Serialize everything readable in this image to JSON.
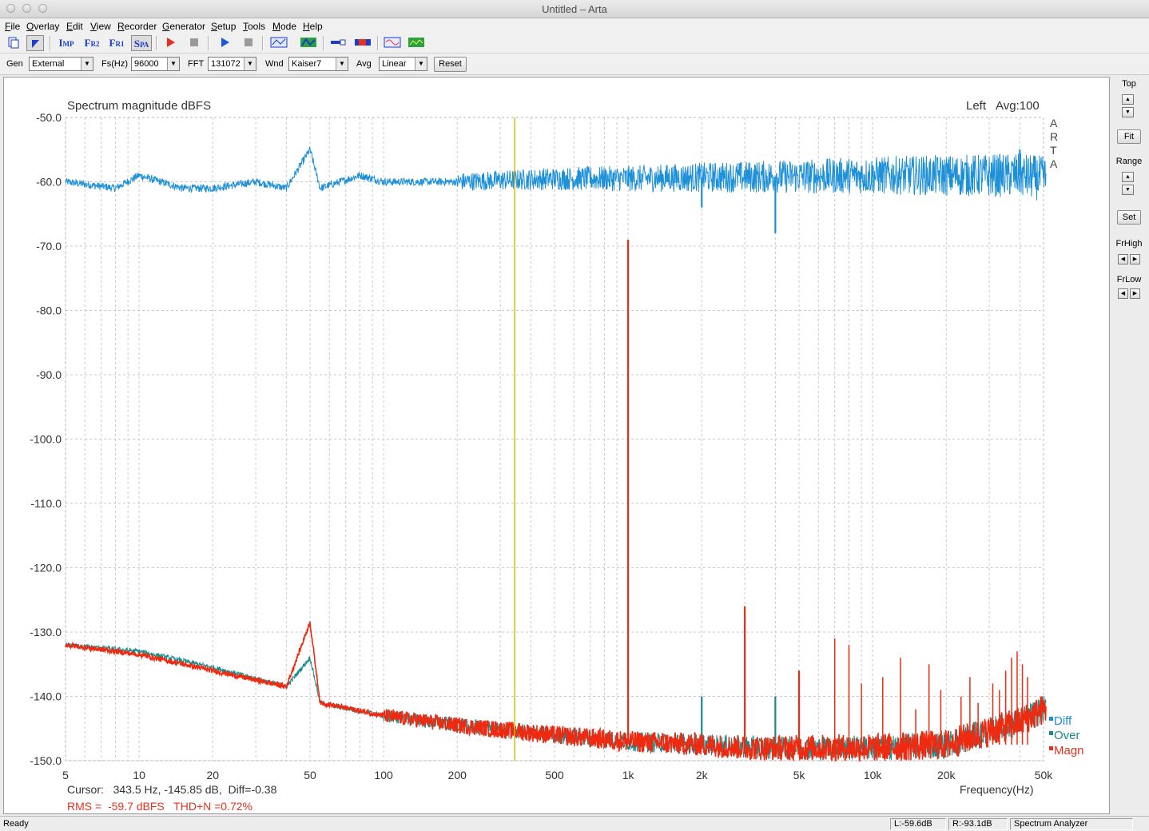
{
  "window": {
    "title": "Untitled – Arta"
  },
  "menu": [
    "File",
    "Overlay",
    "Edit",
    "View",
    "Recorder",
    "Generator",
    "Setup",
    "Tools",
    "Mode",
    "Help"
  ],
  "toolbar": {
    "buttons": [
      {
        "name": "copy-icon",
        "label": ""
      },
      {
        "name": "cursor-icon",
        "label": ""
      },
      {
        "name": "imp-mode-button",
        "label": "Imp"
      },
      {
        "name": "fr2-mode-button",
        "label": "Fr2"
      },
      {
        "name": "fr1-mode-button",
        "label": "Fr1"
      },
      {
        "name": "spa-mode-button",
        "label": "Spa"
      }
    ]
  },
  "params": {
    "gen_label": "Gen",
    "gen_value": "External",
    "fs_label": "Fs(Hz)",
    "fs_value": "96000",
    "fft_label": "FFT",
    "fft_value": "131072",
    "wnd_label": "Wnd",
    "wnd_value": "Kaiser7",
    "avg_label": "Avg",
    "avg_value": "Linear",
    "reset_label": "Reset"
  },
  "plot": {
    "title": "Spectrum magnitude dBFS",
    "channel": "Left",
    "avg": "Avg:100",
    "watermark": [
      "A",
      "R",
      "T",
      "A"
    ],
    "cursor_text": "Cursor:   343.5 Hz, -145.85 dB,  Diff=-0.38",
    "rms_text": "RMS =  -59.7 dBFS   THD+N =0.72%",
    "xlabel": "Frequency(Hz)",
    "legend": [
      "Diff",
      "Over",
      "Magn"
    ]
  },
  "side": {
    "top_label": "Top",
    "fit_label": "Fit",
    "range_label": "Range",
    "set_label": "Set",
    "frhigh_label": "FrHigh",
    "frlow_label": "FrLow"
  },
  "status": {
    "ready": "Ready",
    "left_level": "L:-59.6dB",
    "right_level": "R:-93.1dB",
    "mode": "Spectrum Analyzer"
  },
  "colors": {
    "diff": "#1e90d8",
    "over": "#1a8a8a",
    "magn": "#f02a10",
    "cursor": "#d4b800",
    "grid": "#c8c8c8",
    "accent": "#1a3cc8"
  },
  "chart_data": {
    "type": "line",
    "title": "Spectrum magnitude dBFS",
    "xlabel": "Frequency(Hz)",
    "ylabel": "",
    "xscale": "log",
    "xlim": [
      5,
      50000
    ],
    "ylim": [
      -150,
      -50
    ],
    "grid": true,
    "legend_position": "bottom-right",
    "x_ticks": [
      "5",
      "10",
      "20",
      "50",
      "100",
      "200",
      "500",
      "1k",
      "2k",
      "5k",
      "10k",
      "20k",
      "50k"
    ],
    "x_tick_values": [
      5,
      10,
      20,
      50,
      100,
      200,
      500,
      1000,
      2000,
      5000,
      10000,
      20000,
      50000
    ],
    "y_ticks": [
      "-50.0",
      "-60.0",
      "-70.0",
      "-80.0",
      "-90.0",
      "-100.0",
      "-110.0",
      "-120.0",
      "-130.0",
      "-140.0",
      "-150.0"
    ],
    "y_tick_values": [
      -50,
      -60,
      -70,
      -80,
      -90,
      -100,
      -110,
      -120,
      -130,
      -140,
      -150
    ],
    "cursor_hz": 343.5,
    "series": [
      {
        "name": "Diff",
        "points": [
          [
            5,
            -60
          ],
          [
            8,
            -61
          ],
          [
            10,
            -59
          ],
          [
            15,
            -61
          ],
          [
            20,
            -61
          ],
          [
            30,
            -60
          ],
          [
            40,
            -61
          ],
          [
            50,
            -55
          ],
          [
            55,
            -61
          ],
          [
            80,
            -59
          ],
          [
            100,
            -60
          ],
          [
            200,
            -60
          ],
          [
            500,
            -59.5
          ],
          [
            1000,
            -59.5
          ],
          [
            2000,
            -59.3
          ],
          [
            2000,
            -64
          ],
          [
            4000,
            -59.2
          ],
          [
            4000,
            -68
          ],
          [
            10000,
            -59
          ],
          [
            20000,
            -59
          ],
          [
            40000,
            -59
          ],
          [
            40000,
            -55
          ],
          [
            50000,
            -59.5
          ]
        ]
      },
      {
        "name": "Over",
        "points": [
          [
            5,
            -132
          ],
          [
            10,
            -133
          ],
          [
            20,
            -135.5
          ],
          [
            40,
            -138.5
          ],
          [
            50,
            -134
          ],
          [
            55,
            -141
          ],
          [
            100,
            -143
          ],
          [
            200,
            -144.5
          ],
          [
            500,
            -146
          ],
          [
            1000,
            -147
          ],
          [
            2000,
            -147.5
          ],
          [
            2000,
            -140
          ],
          [
            4000,
            -148
          ],
          [
            4000,
            -140
          ],
          [
            10000,
            -148
          ],
          [
            20000,
            -147.5
          ],
          [
            40000,
            -144
          ],
          [
            50000,
            -142
          ]
        ]
      },
      {
        "name": "Magn",
        "points": [
          [
            5,
            -132
          ],
          [
            10,
            -133.5
          ],
          [
            20,
            -136
          ],
          [
            40,
            -138.5
          ],
          [
            50,
            -128.5
          ],
          [
            55,
            -141
          ],
          [
            100,
            -143
          ],
          [
            200,
            -144.5
          ],
          [
            500,
            -146
          ],
          [
            1000,
            -147
          ],
          [
            1000,
            -69
          ],
          [
            2000,
            -147.5
          ],
          [
            3000,
            -148
          ],
          [
            3000,
            -126
          ],
          [
            5000,
            -148
          ],
          [
            5000,
            -136
          ],
          [
            10000,
            -148
          ],
          [
            20000,
            -147.5
          ],
          [
            40000,
            -144
          ],
          [
            50000,
            -142
          ]
        ]
      }
    ]
  }
}
